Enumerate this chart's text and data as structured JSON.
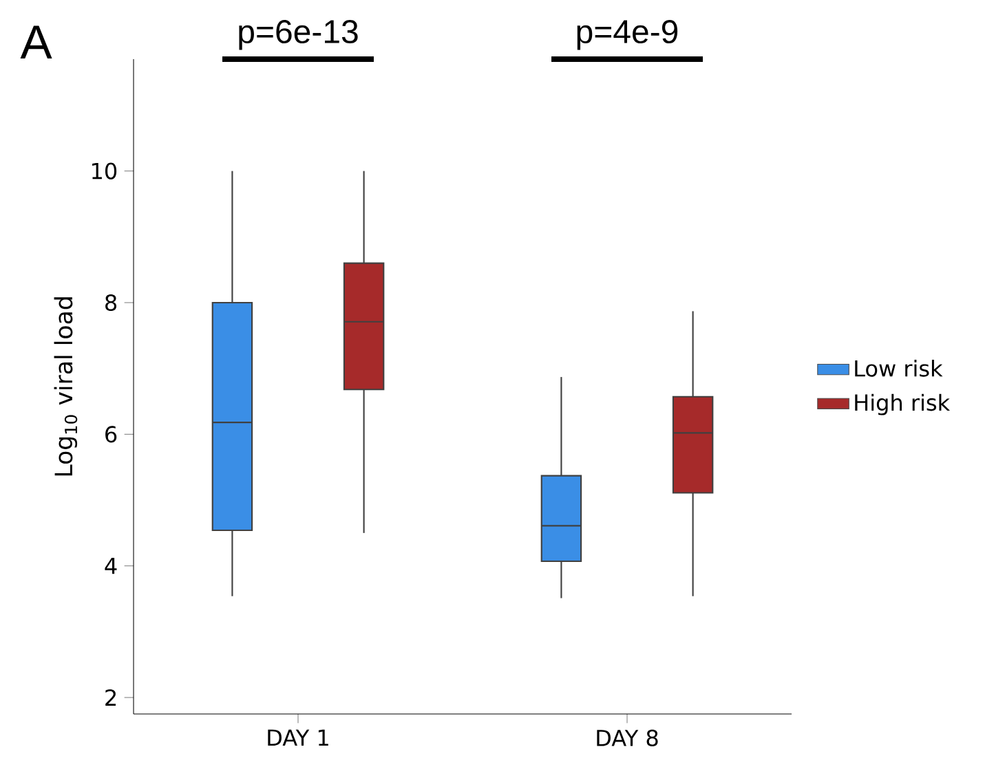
{
  "chart_data": {
    "type": "box",
    "ylabel": "Log$_{10}$ viral load",
    "categories": [
      "DAY 1",
      "DAY 8"
    ],
    "series": [
      {
        "name": "Low risk",
        "color": "#3a8ee6",
        "boxes": [
          {
            "low": 3.54,
            "q1": 4.54,
            "median": 6.18,
            "q3": 8.0,
            "high": 10.0
          },
          {
            "low": 3.51,
            "q1": 4.07,
            "median": 4.61,
            "q3": 5.37,
            "high": 6.87
          }
        ]
      },
      {
        "name": "High risk",
        "color": "#a62a2a",
        "boxes": [
          {
            "low": 4.5,
            "q1": 6.68,
            "median": 7.71,
            "q3": 8.6,
            "high": 10.0
          },
          {
            "low": 3.54,
            "q1": 5.11,
            "median": 6.02,
            "q3": 6.57,
            "high": 7.87
          }
        ]
      }
    ],
    "ylim": [
      1.75,
      11.7
    ],
    "yticks": [
      2,
      4,
      6,
      8,
      10
    ],
    "legend": "right",
    "grid": false,
    "annotations": [
      "A",
      "p=6e-13",
      "p=4e-9"
    ]
  }
}
